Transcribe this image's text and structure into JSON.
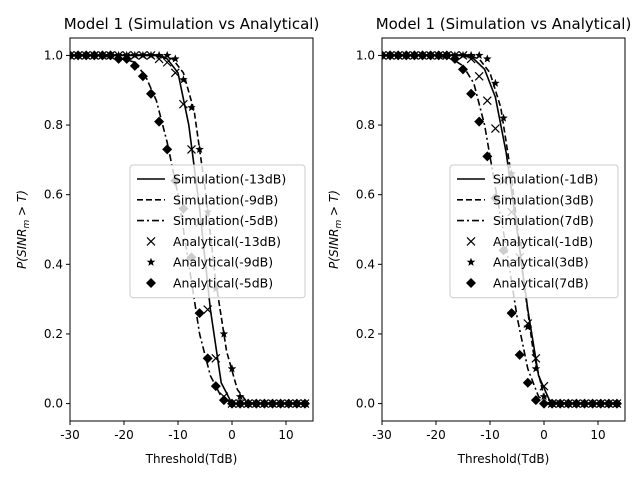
{
  "chart_data": [
    {
      "type": "line",
      "title": "Model 1 (Simulation vs Analytical)",
      "xlabel": "Threshold(TdB)",
      "ylabel": "P(SINR_m > T)",
      "xlim": [
        -30,
        15
      ],
      "ylim": [
        -0.05,
        1.05
      ],
      "xticks": [
        -30,
        -20,
        -10,
        0,
        10
      ],
      "yticks": [
        0.0,
        0.2,
        0.4,
        0.6,
        0.8,
        1.0
      ],
      "legend_position": "center-right",
      "grid": false,
      "series": [
        {
          "name": "Simulation(-13dB)",
          "kind": "simulation",
          "linestyle": "solid",
          "x": [
            -30,
            -20,
            -14,
            -12,
            -10,
            -8,
            -6,
            -4,
            -2,
            0,
            2,
            5,
            10,
            14
          ],
          "y": [
            1.0,
            1.0,
            1.0,
            0.99,
            0.95,
            0.8,
            0.56,
            0.27,
            0.06,
            0.0,
            0.0,
            0.0,
            0.0,
            0.0
          ]
        },
        {
          "name": "Simulation(-9dB)",
          "kind": "simulation",
          "linestyle": "dashed",
          "x": [
            -30,
            -20,
            -14,
            -11,
            -9,
            -7,
            -5,
            -3,
            -1,
            1,
            3,
            5,
            10,
            14
          ],
          "y": [
            1.0,
            1.0,
            1.0,
            0.99,
            0.95,
            0.84,
            0.62,
            0.35,
            0.15,
            0.04,
            0.0,
            0.0,
            0.0,
            0.0
          ]
        },
        {
          "name": "Simulation(-5dB)",
          "kind": "simulation",
          "linestyle": "dashdot",
          "x": [
            -30,
            -25,
            -20,
            -18,
            -16,
            -14,
            -12,
            -10,
            -8,
            -6,
            -4,
            -2,
            0,
            2,
            5,
            10,
            14
          ],
          "y": [
            1.0,
            1.0,
            0.99,
            0.98,
            0.94,
            0.87,
            0.75,
            0.6,
            0.4,
            0.2,
            0.08,
            0.02,
            0.0,
            0.0,
            0.0,
            0.0,
            0.0
          ]
        },
        {
          "name": "Analytical(-13dB)",
          "kind": "analytical",
          "marker": "x",
          "x": [
            -30,
            -28.5,
            -27,
            -25.5,
            -24,
            -22.5,
            -21,
            -19.5,
            -18,
            -16.5,
            -15,
            -13.5,
            -12,
            -10.5,
            -9,
            -7.5,
            -6,
            -4.5,
            -3,
            -1.5,
            0,
            1.5,
            3,
            4.5,
            6,
            7.5,
            9,
            10.5,
            12,
            13.5
          ],
          "y": [
            1.0,
            1.0,
            1.0,
            1.0,
            1.0,
            1.0,
            1.0,
            1.0,
            1.0,
            1.0,
            1.0,
            0.99,
            0.98,
            0.95,
            0.86,
            0.73,
            0.52,
            0.27,
            0.13,
            0.02,
            0.0,
            0.0,
            0.0,
            0.0,
            0.0,
            0.0,
            0.0,
            0.0,
            0.0,
            0.0
          ]
        },
        {
          "name": "Analytical(-9dB)",
          "kind": "analytical",
          "marker": "star",
          "x": [
            -30,
            -28.5,
            -27,
            -25.5,
            -24,
            -22.5,
            -21,
            -19.5,
            -18,
            -16.5,
            -15,
            -13.5,
            -12,
            -10.5,
            -9,
            -7.5,
            -6,
            -4.5,
            -3,
            -1.5,
            0,
            1.5,
            3,
            4.5,
            6,
            7.5,
            9,
            10.5,
            12,
            13.5
          ],
          "y": [
            1.0,
            1.0,
            1.0,
            1.0,
            1.0,
            1.0,
            1.0,
            1.0,
            1.0,
            1.0,
            1.0,
            1.0,
            1.0,
            0.99,
            0.93,
            0.85,
            0.73,
            0.55,
            0.33,
            0.2,
            0.1,
            0.02,
            0.0,
            0.0,
            0.0,
            0.0,
            0.0,
            0.0,
            0.0,
            0.0
          ]
        },
        {
          "name": "Analytical(-5dB)",
          "kind": "analytical",
          "marker": "diamond",
          "x": [
            -30,
            -28.5,
            -27,
            -25.5,
            -24,
            -22.5,
            -21,
            -19.5,
            -18,
            -16.5,
            -15,
            -13.5,
            -12,
            -10.5,
            -9,
            -7.5,
            -6,
            -4.5,
            -3,
            -1.5,
            0,
            1.5,
            3,
            4.5,
            6,
            7.5,
            9,
            10.5,
            12,
            13.5
          ],
          "y": [
            1.0,
            1.0,
            1.0,
            1.0,
            1.0,
            1.0,
            0.99,
            0.99,
            0.97,
            0.94,
            0.89,
            0.81,
            0.73,
            0.64,
            0.56,
            0.42,
            0.26,
            0.13,
            0.05,
            0.01,
            0.0,
            0.0,
            0.0,
            0.0,
            0.0,
            0.0,
            0.0,
            0.0,
            0.0,
            0.0
          ]
        }
      ]
    },
    {
      "type": "line",
      "title": "Model 1 (Simulation vs Analytical)",
      "xlabel": "Threshold(TdB)",
      "ylabel": "P(SINR_m > T)",
      "xlim": [
        -30,
        15
      ],
      "ylim": [
        -0.05,
        1.05
      ],
      "xticks": [
        -30,
        -20,
        -10,
        0,
        10
      ],
      "yticks": [
        0.0,
        0.2,
        0.4,
        0.6,
        0.8,
        1.0
      ],
      "legend_position": "center-right",
      "grid": false,
      "series": [
        {
          "name": "Simulation(-1dB)",
          "kind": "simulation",
          "linestyle": "solid",
          "x": [
            -30,
            -20,
            -15,
            -13,
            -11,
            -9,
            -7,
            -5,
            -3,
            -1,
            1,
            3,
            5,
            10,
            14
          ],
          "y": [
            1.0,
            1.0,
            1.0,
            0.99,
            0.96,
            0.88,
            0.72,
            0.5,
            0.27,
            0.08,
            0.01,
            0.0,
            0.0,
            0.0,
            0.0
          ]
        },
        {
          "name": "Simulation(3dB)",
          "kind": "simulation",
          "linestyle": "dashed",
          "x": [
            -30,
            -20,
            -14,
            -12,
            -10,
            -8,
            -6,
            -4,
            -2,
            0,
            2,
            5,
            10,
            14
          ],
          "y": [
            1.0,
            1.0,
            1.0,
            0.99,
            0.95,
            0.85,
            0.65,
            0.38,
            0.15,
            0.02,
            0.0,
            0.0,
            0.0,
            0.0
          ]
        },
        {
          "name": "Simulation(7dB)",
          "kind": "simulation",
          "linestyle": "dashdot",
          "x": [
            -30,
            -20,
            -17,
            -15,
            -13,
            -11,
            -9,
            -7,
            -5,
            -3,
            -1,
            1,
            3,
            5,
            10,
            14
          ],
          "y": [
            1.0,
            1.0,
            0.99,
            0.97,
            0.92,
            0.8,
            0.62,
            0.45,
            0.25,
            0.1,
            0.02,
            0.0,
            0.0,
            0.0,
            0.0,
            0.0
          ]
        },
        {
          "name": "Analytical(-1dB)",
          "kind": "analytical",
          "marker": "x",
          "x": [
            -30,
            -28.5,
            -27,
            -25.5,
            -24,
            -22.5,
            -21,
            -19.5,
            -18,
            -16.5,
            -15,
            -13.5,
            -12,
            -10.5,
            -9,
            -7.5,
            -6,
            -4.5,
            -3,
            -1.5,
            0,
            1.5,
            3,
            4.5,
            6,
            7.5,
            9,
            10.5,
            12,
            13.5
          ],
          "y": [
            1.0,
            1.0,
            1.0,
            1.0,
            1.0,
            1.0,
            1.0,
            1.0,
            1.0,
            1.0,
            1.0,
            0.99,
            0.94,
            0.87,
            0.79,
            0.64,
            0.55,
            0.42,
            0.23,
            0.13,
            0.05,
            0.0,
            0.0,
            0.0,
            0.0,
            0.0,
            0.0,
            0.0,
            0.0,
            0.0
          ]
        },
        {
          "name": "Analytical(3dB)",
          "kind": "analytical",
          "marker": "star",
          "x": [
            -30,
            -28.5,
            -27,
            -25.5,
            -24,
            -22.5,
            -21,
            -19.5,
            -18,
            -16.5,
            -15,
            -13.5,
            -12,
            -10.5,
            -9,
            -7.5,
            -6,
            -4.5,
            -3,
            -1.5,
            0,
            1.5,
            3,
            4.5,
            6,
            7.5,
            9,
            10.5,
            12,
            13.5
          ],
          "y": [
            1.0,
            1.0,
            1.0,
            1.0,
            1.0,
            1.0,
            1.0,
            1.0,
            1.0,
            1.0,
            1.0,
            1.0,
            1.0,
            0.99,
            0.92,
            0.82,
            0.66,
            0.46,
            0.22,
            0.1,
            0.02,
            0.0,
            0.0,
            0.0,
            0.0,
            0.0,
            0.0,
            0.0,
            0.0,
            0.0
          ]
        },
        {
          "name": "Analytical(7dB)",
          "kind": "analytical",
          "marker": "diamond",
          "x": [
            -30,
            -28.5,
            -27,
            -25.5,
            -24,
            -22.5,
            -21,
            -19.5,
            -18,
            -16.5,
            -15,
            -13.5,
            -12,
            -10.5,
            -9,
            -7.5,
            -6,
            -4.5,
            -3,
            -1.5,
            0,
            1.5,
            3,
            4.5,
            6,
            7.5,
            9,
            10.5,
            12,
            13.5
          ],
          "y": [
            1.0,
            1.0,
            1.0,
            1.0,
            1.0,
            1.0,
            1.0,
            1.0,
            1.0,
            0.99,
            0.96,
            0.89,
            0.81,
            0.71,
            0.59,
            0.44,
            0.26,
            0.14,
            0.06,
            0.01,
            0.0,
            0.0,
            0.0,
            0.0,
            0.0,
            0.0,
            0.0,
            0.0,
            0.0,
            0.0
          ]
        }
      ]
    }
  ]
}
